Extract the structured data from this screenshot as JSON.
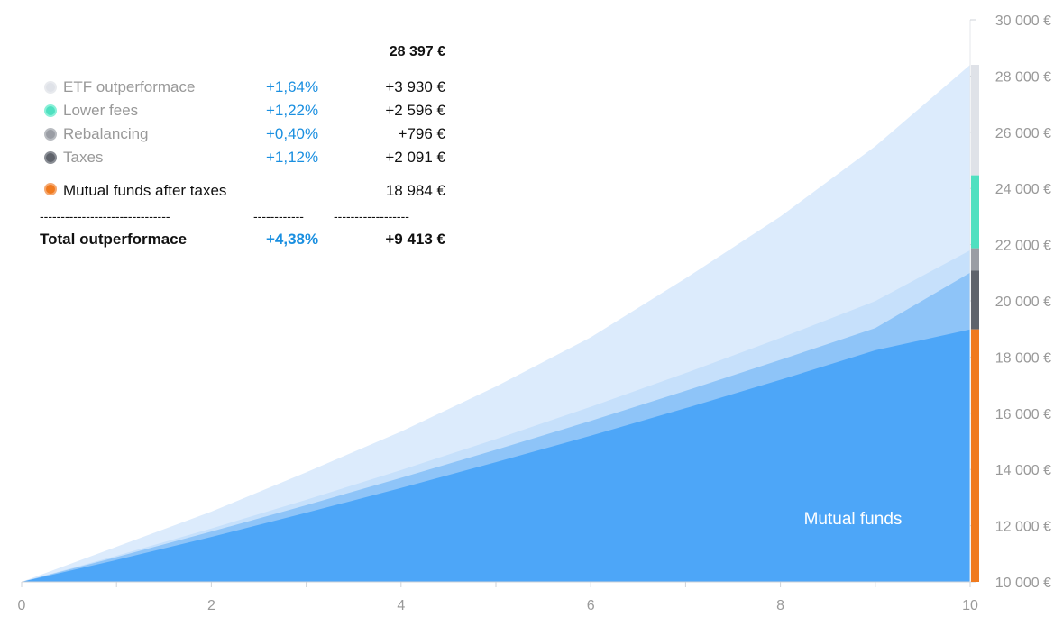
{
  "chart_data": {
    "type": "area",
    "x": [
      0,
      1,
      2,
      3,
      4,
      5,
      6,
      7,
      8,
      9,
      10
    ],
    "x_ticks": [
      "0",
      "2",
      "4",
      "6",
      "8",
      "10"
    ],
    "xlim": [
      0,
      10
    ],
    "ylim": [
      10000,
      30000
    ],
    "y_ticks": [
      "10 000 €",
      "12 000 €",
      "14 000 €",
      "16 000 €",
      "18 000 €",
      "20 000 €",
      "22 000 €",
      "24 000 €",
      "26 000 €",
      "28 000 €",
      "30 000 €"
    ],
    "y_tick_values": [
      10000,
      12000,
      14000,
      16000,
      18000,
      20000,
      22000,
      24000,
      26000,
      28000,
      30000
    ],
    "series": [
      {
        "name": "",
        "values": [
          10000,
          11000,
          12080,
          13250,
          14520,
          15880,
          17330,
          18890,
          20560,
          22350,
          24300
        ],
        "color": "#dcebfc"
      },
      {
        "name": "",
        "values": [
          10000,
          10930,
          11900,
          12920,
          13980,
          15080,
          16230,
          17430,
          18680,
          19990,
          21800
        ],
        "color": "#c6e0fb"
      },
      {
        "name": "",
        "values": [
          10000,
          10880,
          11790,
          12730,
          13700,
          14700,
          15730,
          16800,
          17900,
          19030,
          21000
        ],
        "color": "#8ec4f8"
      },
      {
        "name": "Mutual funds",
        "values": [
          10000,
          10780,
          11600,
          12460,
          13340,
          14260,
          15200,
          16180,
          17190,
          18240,
          18984
        ],
        "color": "#4da6f8"
      },
      {
        "name": "",
        "values": [
          10000,
          11250,
          12500,
          13900,
          15350,
          16950,
          18700,
          20800,
          23000,
          25500,
          28397
        ],
        "color": "#dcebfc"
      }
    ],
    "area_label": "Mutual funds",
    "stack_bar": [
      {
        "from": 24467,
        "to": 28397,
        "color": "#dfe2e8"
      },
      {
        "from": 21871,
        "to": 24467,
        "color": "#4fe0c0"
      },
      {
        "from": 21075,
        "to": 21871,
        "color": "#9a9da4"
      },
      {
        "from": 18984,
        "to": 21075,
        "color": "#5f636b"
      },
      {
        "from": 10000,
        "to": 18984,
        "color": "#f07a1e"
      }
    ]
  },
  "legend": {
    "total": "28 397 €",
    "rows": [
      {
        "name": "ETF outperformace",
        "pct": "+1,64%",
        "value": "+3 930 €",
        "color": "#dfe2e8",
        "border": "#e8eaee"
      },
      {
        "name": "Lower fees",
        "pct": "+1,22%",
        "value": "+2 596 €",
        "color": "#4fe0c0",
        "border": "#8af0d8"
      },
      {
        "name": "Rebalancing",
        "pct": "+0,40%",
        "value": "+796 €",
        "color": "#9a9da4",
        "border": "#b8bbc0"
      },
      {
        "name": "Taxes",
        "pct": "+1,12%",
        "value": "+2 091 €",
        "color": "#5f636b",
        "border": "#8a8e95"
      }
    ],
    "mutual": {
      "name": "Mutual funds after taxes",
      "value": "18 984 €",
      "color": "#f07a1e",
      "border": "#f5a870"
    },
    "dash_name": "-------------------------------",
    "dash_pct": "------------",
    "dash_value": "------------------",
    "summary": {
      "name": "Total outperformace",
      "pct": "+4,38%",
      "value": "+9 413 €"
    }
  }
}
